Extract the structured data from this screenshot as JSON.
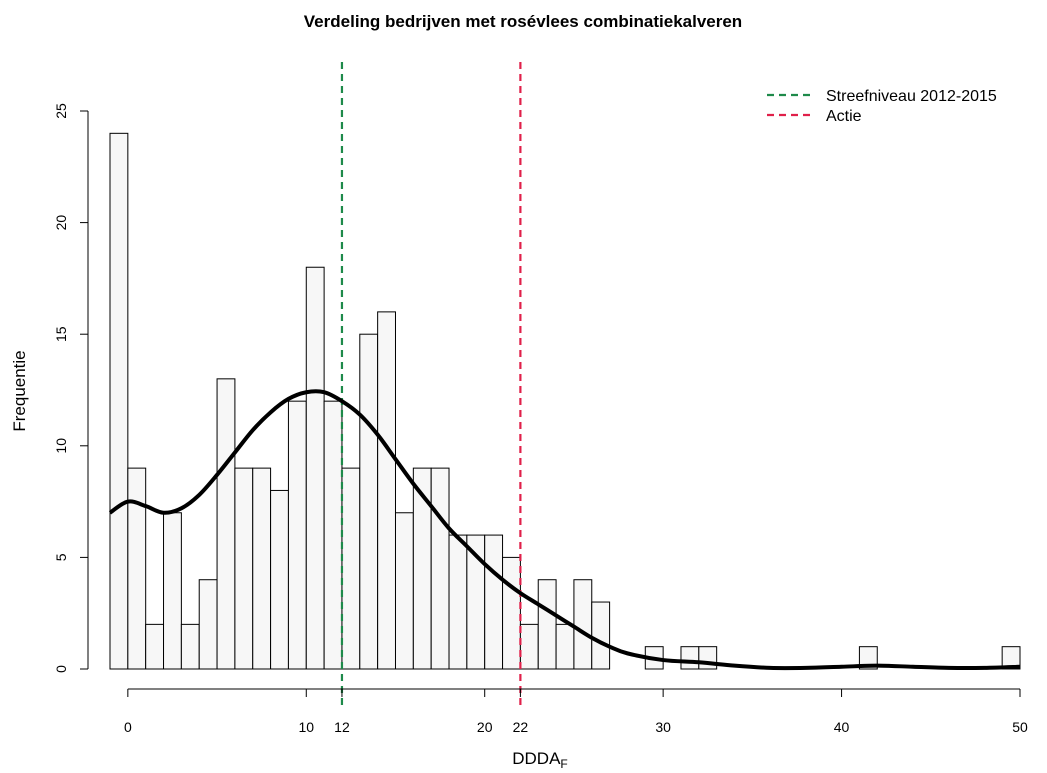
{
  "chart_data": {
    "type": "bar",
    "title": "Verdeling bedrijven met rosévlees combinatiekalveren",
    "xlabel": "DDDA",
    "xlabel_sub": "F",
    "ylabel": "Frequentie",
    "xlim": [
      -1,
      50
    ],
    "ylim": [
      0,
      25
    ],
    "xticks": [
      "0",
      "10",
      "12",
      "20",
      "22",
      "30",
      "40",
      "50"
    ],
    "xtick_values": [
      0,
      10,
      12,
      20,
      22,
      30,
      40,
      50
    ],
    "yticks": [
      "0",
      "5",
      "10",
      "15",
      "20",
      "25"
    ],
    "ytick_values": [
      0,
      5,
      10,
      15,
      20,
      25
    ],
    "bin_width": 1,
    "bin_start": -1,
    "values": [
      24,
      9,
      2,
      7,
      2,
      4,
      13,
      9,
      9,
      8,
      12,
      18,
      12,
      9,
      15,
      16,
      7,
      9,
      9,
      6,
      6,
      6,
      5,
      2,
      4,
      2,
      4,
      3,
      0,
      0,
      1,
      0,
      1,
      1,
      0,
      0,
      0,
      0,
      0,
      0,
      0,
      0,
      1,
      0,
      0,
      0,
      0,
      0,
      0,
      0,
      1
    ],
    "density_curve": {
      "x": [
        -1,
        0,
        1,
        2,
        3,
        4,
        5,
        6,
        7,
        8,
        9,
        10,
        11,
        12,
        13,
        14,
        15,
        16,
        17,
        18,
        19,
        20,
        21,
        22,
        23,
        24,
        25,
        26,
        27,
        28,
        30,
        32,
        34,
        36,
        38,
        40,
        42,
        44,
        46,
        48,
        50
      ],
      "y": [
        7.0,
        7.5,
        7.3,
        7.0,
        7.2,
        7.8,
        8.7,
        9.7,
        10.7,
        11.5,
        12.1,
        12.4,
        12.4,
        12.0,
        11.4,
        10.5,
        9.4,
        8.3,
        7.3,
        6.3,
        5.5,
        4.7,
        4.0,
        3.4,
        2.9,
        2.4,
        1.9,
        1.4,
        1.0,
        0.7,
        0.4,
        0.3,
        0.15,
        0.05,
        0.05,
        0.1,
        0.15,
        0.1,
        0.05,
        0.05,
        0.1
      ]
    },
    "reference_lines": [
      {
        "name": "Streefniveau 2012-2015",
        "x": 12,
        "color": "#1e8a4a"
      },
      {
        "name": "Actie",
        "x": 22,
        "color": "#e0204a"
      }
    ],
    "legend_position": "top-right",
    "grid": false
  }
}
